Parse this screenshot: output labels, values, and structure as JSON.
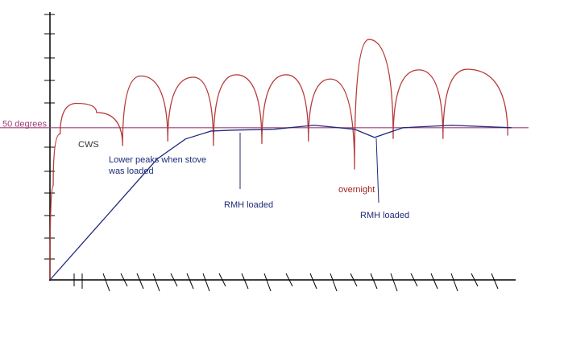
{
  "chart_data": {
    "type": "line",
    "xlim": [
      0,
      100
    ],
    "ylim": [
      0,
      88
    ],
    "reference_line": {
      "value": 50,
      "label": "50 degrees",
      "color": "#a0407a"
    },
    "series": [
      {
        "color": "#b83a3a",
        "x": [
          0,
          0.7,
          2.2,
          5.7,
          10,
          15.6,
          19.5,
          25.3,
          30.8,
          35.1,
          40,
          45.5,
          50.7,
          55.5,
          60.2,
          65.4,
          68.5,
          73.7,
          79.2,
          84.4,
          89.6,
          98.3
        ],
        "values": [
          0,
          31,
          48,
          58,
          55,
          44,
          67,
          45.5,
          66.6,
          44,
          67.4,
          44.7,
          67.4,
          45.5,
          66,
          36.3,
          79,
          46.3,
          69,
          46.3,
          69.2,
          47.4
        ]
      },
      {
        "color": "#1f2a7a",
        "x": [
          0,
          23,
          29.1,
          34.6,
          39.4,
          48.1,
          56.7,
          65.4,
          69.7,
          75.8,
          86.2,
          99.1
        ],
        "values": [
          0,
          39.7,
          46.3,
          48.9,
          49.2,
          49.5,
          50.8,
          49.5,
          46.8,
          50,
          50.8,
          50
        ]
      }
    ],
    "annotations": [
      {
        "text": [
          "CWS"
        ],
        "color": "#333333"
      },
      {
        "text": [
          "Lower peaks when stove",
          "was loaded"
        ],
        "color": "#1f2a7a"
      },
      {
        "text": [
          "RMH loaded"
        ],
        "color": "#1f2a7a"
      },
      {
        "text": [
          "overnight"
        ],
        "color": "#a02020"
      },
      {
        "text": [
          "RMH loaded"
        ],
        "color": "#1f2a7a"
      }
    ]
  }
}
